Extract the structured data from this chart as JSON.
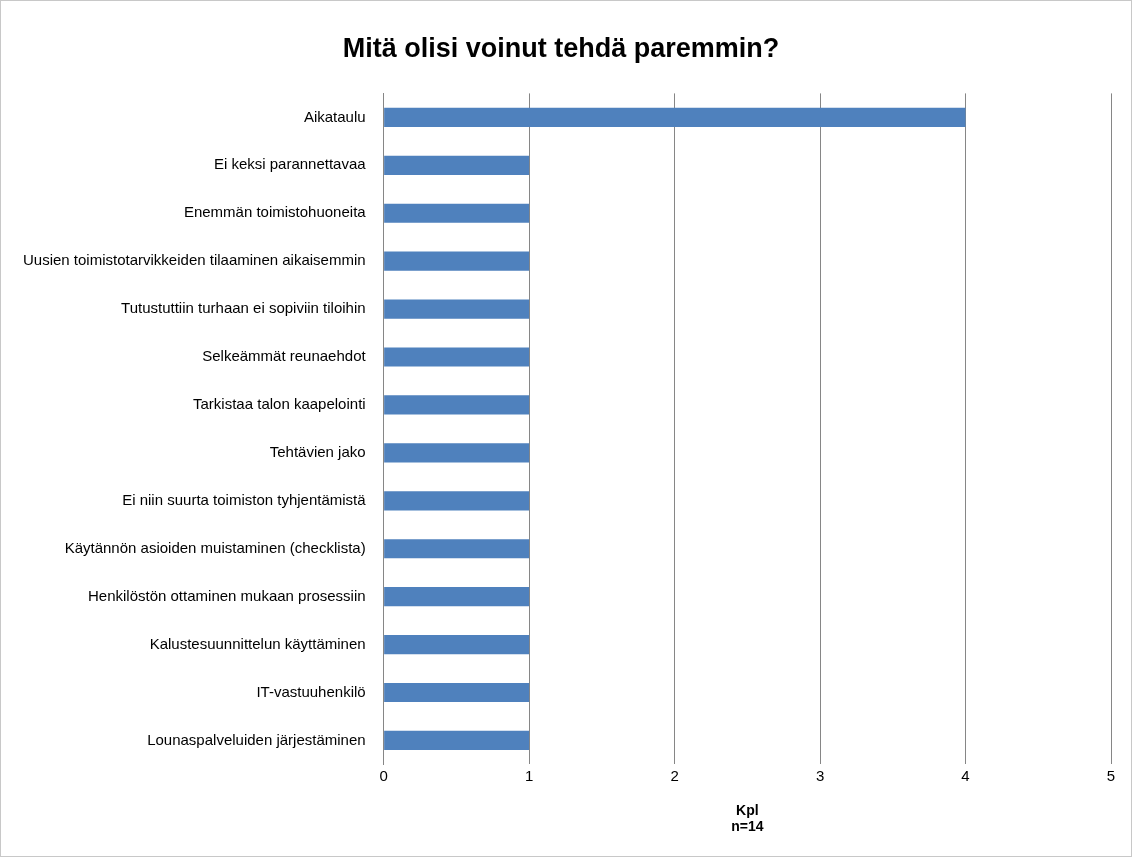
{
  "chart_data": {
    "type": "bar",
    "orientation": "horizontal",
    "title": "Mitä olisi voinut tehdä paremmin?",
    "xlabel": "Kpl",
    "annotations": [
      "n=14"
    ],
    "categories": [
      "Aikataulu",
      "Ei keksi parannettavaa",
      "Enemmän toimistohuoneita",
      "Uusien toimistotarvikkeiden tilaaminen aikaisemmin",
      "Tutustuttiin turhaan ei sopiviin tiloihin",
      "Selkeämmät reunaehdot",
      "Tarkistaa talon kaapelointi",
      "Tehtävien jako",
      "Ei niin suurta toimiston tyhjentämistä",
      "Käytännön asioiden muistaminen (checklista)",
      "Henkilöstön ottaminen mukaan prosessiin",
      "Kalustesuunnittelun käyttäminen",
      "IT-vastuuhenkilö",
      "Lounaspalveluiden järjestäminen"
    ],
    "values": [
      4,
      1,
      1,
      1,
      1,
      1,
      1,
      1,
      1,
      1,
      1,
      1,
      1,
      1
    ],
    "color": "#4f81bd",
    "xlim": [
      0,
      5
    ],
    "xticks": [
      0,
      1,
      2,
      3,
      4,
      5
    ],
    "grid": "x",
    "legend": false
  }
}
